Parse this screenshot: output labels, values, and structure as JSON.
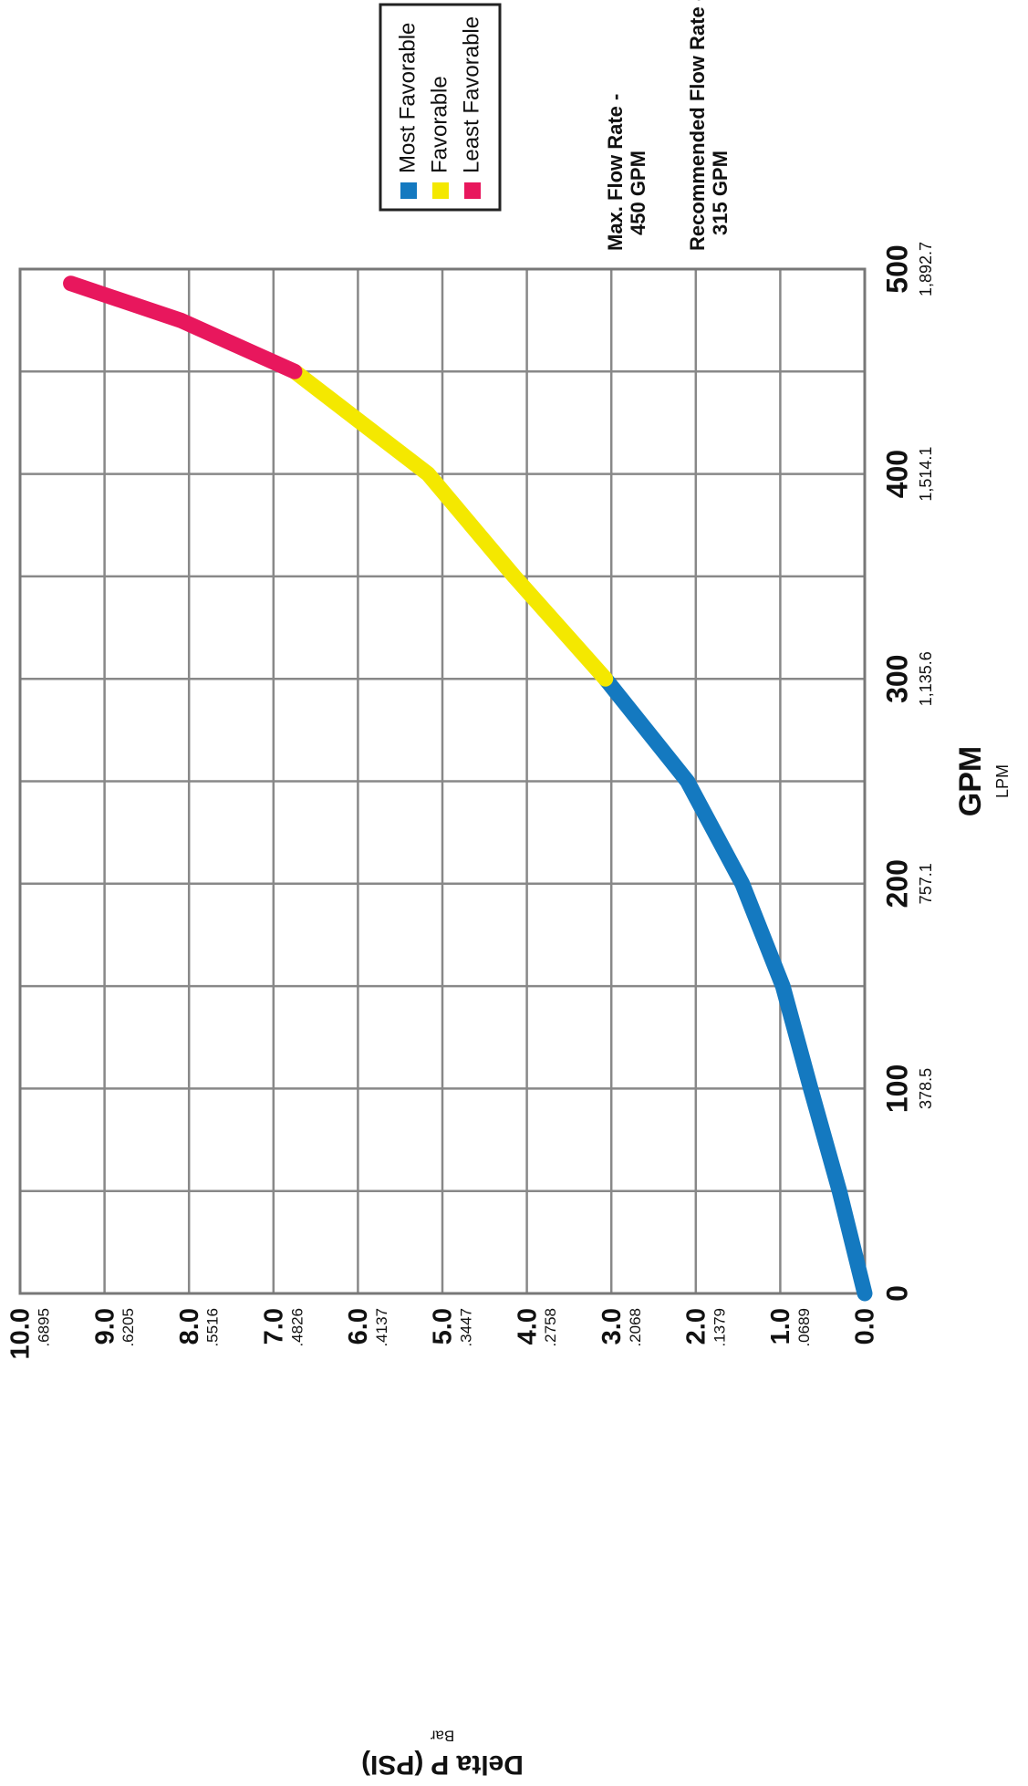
{
  "chart_data": {
    "type": "line",
    "xlabel": "GPM",
    "x2label": "LPM",
    "ylabel": "Delta P (PSI)",
    "y2label": "Bar",
    "xlim": [
      0,
      500
    ],
    "xticks": [
      0,
      100,
      200,
      300,
      400,
      500
    ],
    "xminorticks": [
      50,
      150,
      250,
      350,
      450
    ],
    "x2lim": [
      0,
      1892.7
    ],
    "x2ticks": [
      {
        "value": 378.5,
        "label": "378.5"
      },
      {
        "value": 757.1,
        "label": "757.1"
      },
      {
        "value": 1135.6,
        "label": "1,135.6"
      },
      {
        "value": 1514.1,
        "label": "1,514.1"
      },
      {
        "value": 1892.7,
        "label": "1,892.7"
      }
    ],
    "ylim": [
      0,
      10
    ],
    "yticks": [
      {
        "value": 0,
        "label": "0.0"
      },
      {
        "value": 1,
        "label": "1.0"
      },
      {
        "value": 2,
        "label": "2.0"
      },
      {
        "value": 3,
        "label": "3.0"
      },
      {
        "value": 4,
        "label": "4.0"
      },
      {
        "value": 5,
        "label": "5.0"
      },
      {
        "value": 6,
        "label": "6.0"
      },
      {
        "value": 7,
        "label": "7.0"
      },
      {
        "value": 8,
        "label": "8.0"
      },
      {
        "value": 9,
        "label": "9.0"
      },
      {
        "value": 10,
        "label": "10.0"
      }
    ],
    "y2lim": [
      0,
      0.6895
    ],
    "y2ticks": [
      {
        "value": 0.0689,
        "label": ".0689"
      },
      {
        "value": 0.1379,
        "label": ".1379"
      },
      {
        "value": 0.2068,
        "label": ".2068"
      },
      {
        "value": 0.2758,
        "label": ".2758"
      },
      {
        "value": 0.3447,
        "label": ".3447"
      },
      {
        "value": 0.4137,
        "label": ".4137"
      },
      {
        "value": 0.4826,
        "label": ".4826"
      },
      {
        "value": 0.5516,
        "label": ".5516"
      },
      {
        "value": 0.6205,
        "label": ".6205"
      },
      {
        "value": 0.6895,
        "label": ".6895"
      }
    ],
    "grid": true,
    "legend": "top-right",
    "series": [
      {
        "name": "Most Favorable",
        "color": "#1479c0",
        "x": [
          0,
          50,
          100,
          150,
          200,
          250,
          300
        ],
        "values": [
          0,
          0.3,
          0.64,
          0.97,
          1.45,
          2.1,
          3.07
        ]
      },
      {
        "name": "Favorable",
        "color": "#f4e800",
        "x": [
          300,
          350,
          400,
          450
        ],
        "values": [
          3.07,
          4.15,
          5.17,
          6.75
        ]
      },
      {
        "name": "Least Favorable",
        "color": "#e8175d",
        "x": [
          450,
          475,
          493
        ],
        "values": [
          6.75,
          8.1,
          9.4
        ]
      }
    ],
    "annotations": [
      "Max. Flow Rate -",
      "450 GPM",
      "Recommended Flow Rate -",
      "315 GPM"
    ]
  }
}
